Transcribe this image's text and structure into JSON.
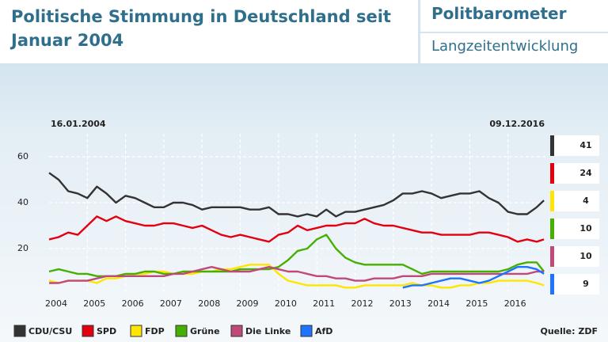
{
  "chart_data": {
    "type": "line",
    "title": "Politische Stimmung in Deutschland seit Januar 2004",
    "brand": "Politbarometer",
    "subtitle": "Langzeitentwicklung",
    "start_label": "16.01.2004",
    "end_label": "09.12.2016",
    "source": "Quelle: ZDF",
    "x": [
      2004,
      2004.25,
      2004.5,
      2004.75,
      2005,
      2005.25,
      2005.5,
      2005.75,
      2006,
      2006.25,
      2006.5,
      2006.75,
      2007,
      2007.25,
      2007.5,
      2007.75,
      2008,
      2008.25,
      2008.5,
      2008.75,
      2009,
      2009.25,
      2009.5,
      2009.75,
      2010,
      2010.25,
      2010.5,
      2010.75,
      2011,
      2011.25,
      2011.5,
      2011.75,
      2012,
      2012.25,
      2012.5,
      2012.75,
      2013,
      2013.25,
      2013.5,
      2013.75,
      2014,
      2014.25,
      2014.5,
      2014.75,
      2015,
      2015.25,
      2015.5,
      2015.75,
      2016,
      2016.25,
      2016.5,
      2016.75,
      2016.94
    ],
    "xlim": [
      2004,
      2017
    ],
    "xticks": [
      2004,
      2005,
      2006,
      2007,
      2008,
      2009,
      2010,
      2011,
      2012,
      2013,
      2014,
      2015,
      2016
    ],
    "ylim": [
      0,
      70
    ],
    "yticks": [
      20,
      40,
      60
    ],
    "grid": true,
    "series": [
      {
        "name": "CDU/CSU",
        "color": "#333333",
        "values": [
          53,
          50,
          45,
          44,
          42,
          47,
          44,
          40,
          43,
          42,
          40,
          38,
          38,
          40,
          40,
          39,
          37,
          38,
          38,
          38,
          38,
          37,
          37,
          38,
          35,
          35,
          34,
          35,
          34,
          37,
          34,
          36,
          36,
          37,
          38,
          39,
          41,
          44,
          44,
          45,
          44,
          42,
          43,
          44,
          44,
          45,
          42,
          40,
          36,
          35,
          35,
          38,
          41
        ]
      },
      {
        "name": "SPD",
        "color": "#e3000f",
        "values": [
          24,
          25,
          27,
          26,
          30,
          34,
          32,
          34,
          32,
          31,
          30,
          30,
          31,
          31,
          30,
          29,
          30,
          28,
          26,
          25,
          26,
          25,
          24,
          23,
          26,
          27,
          30,
          28,
          29,
          30,
          30,
          31,
          31,
          33,
          31,
          30,
          30,
          29,
          28,
          27,
          27,
          26,
          26,
          26,
          26,
          27,
          27,
          26,
          25,
          23,
          24,
          23,
          24
        ]
      },
      {
        "name": "FDP",
        "color": "#ffe600",
        "values": [
          6,
          5,
          6,
          6,
          6,
          5,
          7,
          7,
          8,
          9,
          9,
          10,
          10,
          9,
          9,
          9,
          10,
          10,
          11,
          11,
          12,
          13,
          13,
          13,
          9,
          6,
          5,
          4,
          4,
          4,
          4,
          3,
          3,
          4,
          4,
          4,
          4,
          4,
          5,
          4,
          4,
          3,
          3,
          4,
          4,
          5,
          5,
          6,
          6,
          6,
          6,
          5,
          4
        ]
      },
      {
        "name": "Grüne",
        "color": "#46b000",
        "values": [
          10,
          11,
          10,
          9,
          9,
          8,
          8,
          8,
          9,
          9,
          10,
          10,
          9,
          9,
          10,
          10,
          10,
          10,
          10,
          10,
          11,
          11,
          11,
          11,
          12,
          15,
          19,
          20,
          24,
          26,
          20,
          16,
          14,
          13,
          13,
          13,
          13,
          13,
          11,
          9,
          10,
          10,
          10,
          10,
          10,
          10,
          10,
          10,
          11,
          13,
          14,
          14,
          10
        ]
      },
      {
        "name": "Die Linke",
        "color": "#c0497a",
        "values": [
          5,
          5,
          6,
          6,
          6,
          7,
          8,
          8,
          8,
          8,
          8,
          8,
          8,
          9,
          9,
          10,
          11,
          12,
          11,
          10,
          10,
          10,
          11,
          12,
          11,
          10,
          10,
          9,
          8,
          8,
          7,
          7,
          6,
          6,
          7,
          7,
          7,
          8,
          8,
          8,
          9,
          9,
          9,
          9,
          9,
          9,
          9,
          9,
          9,
          9,
          9,
          10,
          10
        ]
      },
      {
        "name": "AfD",
        "color": "#1e73ff",
        "values": [
          null,
          null,
          null,
          null,
          null,
          null,
          null,
          null,
          null,
          null,
          null,
          null,
          null,
          null,
          null,
          null,
          null,
          null,
          null,
          null,
          null,
          null,
          null,
          null,
          null,
          null,
          null,
          null,
          null,
          null,
          null,
          null,
          null,
          null,
          null,
          null,
          null,
          3,
          4,
          4,
          5,
          6,
          7,
          7,
          6,
          5,
          6,
          8,
          10,
          12,
          12,
          11,
          9
        ]
      }
    ]
  }
}
